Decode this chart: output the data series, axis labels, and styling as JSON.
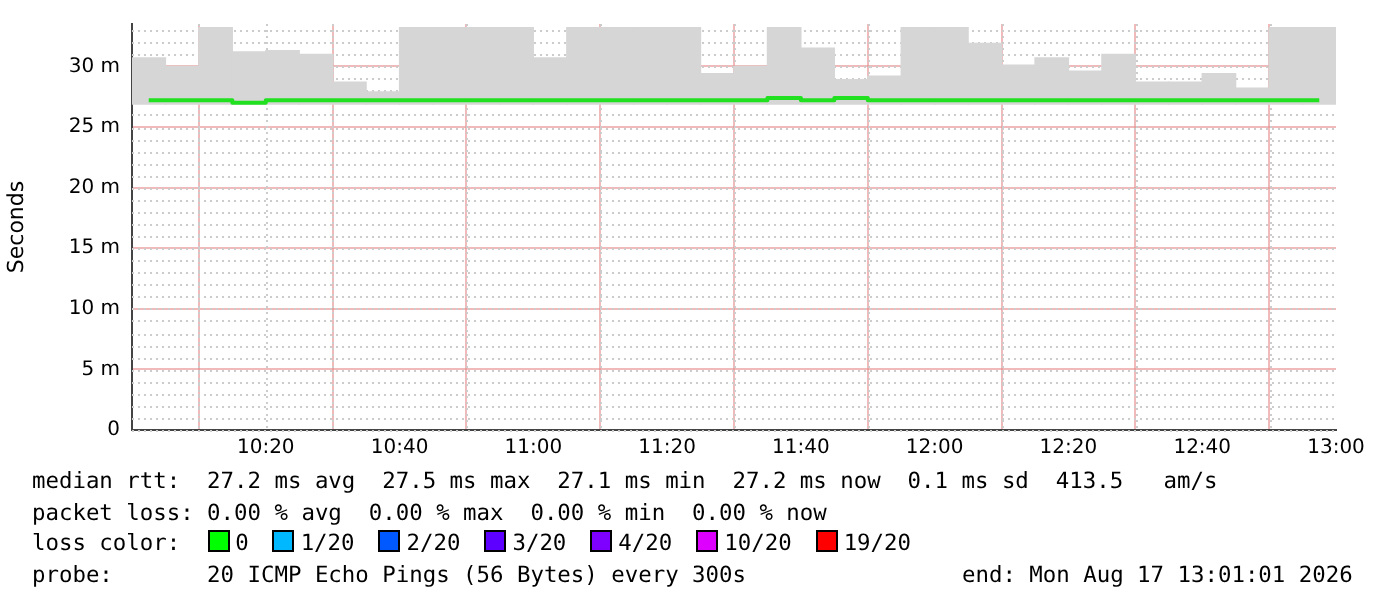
{
  "chart_data": {
    "type": "bar",
    "ylabel": "Seconds",
    "x": [
      10.0417,
      10.125,
      10.2083,
      10.2917,
      10.375,
      10.4583,
      10.5417,
      10.625,
      10.7083,
      10.7917,
      10.875,
      10.9583,
      11.0417,
      11.125,
      11.2083,
      11.2917,
      11.375,
      11.4583,
      11.5417,
      11.625,
      11.7083,
      11.7917,
      11.875,
      11.9583,
      12.0417,
      12.125,
      12.2083,
      12.2917,
      12.375,
      12.4583,
      12.5417,
      12.625,
      12.7083,
      12.7917,
      12.875,
      12.9583
    ],
    "xlim": [
      10.0,
      13.0
    ],
    "xticks": [
      {
        "value": 10.3333,
        "label": "10:20"
      },
      {
        "value": 10.6667,
        "label": "10:40"
      },
      {
        "value": 11,
        "label": "11:00"
      },
      {
        "value": 11.3333,
        "label": "11:20"
      },
      {
        "value": 11.6667,
        "label": "11:40"
      },
      {
        "value": 12,
        "label": "12:00"
      },
      {
        "value": 12.3333,
        "label": "12:20"
      },
      {
        "value": 12.6667,
        "label": "12:40"
      },
      {
        "value": 13,
        "label": "13:00"
      }
    ],
    "ylim": [
      0,
      33.5
    ],
    "yticks": [
      0,
      {
        "value": 5,
        "label": "5 m"
      },
      {
        "value": 10,
        "label": "10 m"
      },
      {
        "value": 15,
        "label": "15 m"
      },
      {
        "value": 20,
        "label": "20 m"
      },
      {
        "value": 25,
        "label": "25 m"
      },
      {
        "value": 30,
        "label": "30 m"
      }
    ],
    "grid": true,
    "series": [
      {
        "color": "#d6d6d6",
        "base": [
          26.9,
          26.9,
          26.9,
          26.9,
          26.9,
          26.9,
          26.9,
          26.9,
          26.9,
          26.9,
          26.9,
          26.9,
          26.9,
          26.9,
          26.9,
          26.9,
          26.9,
          26.9,
          26.9,
          26.9,
          26.9,
          26.9,
          26.9,
          26.9,
          26.9,
          26.9,
          26.9,
          26.9,
          26.9,
          26.9,
          26.9,
          26.9,
          26.9,
          26.9,
          26.9,
          26.9
        ],
        "values": [
          3.8,
          3.1,
          6.3,
          4.3,
          4.4,
          4.1,
          1.8,
          1.0,
          6.3,
          6.3,
          6.3,
          6.3,
          3.8,
          6.3,
          6.3,
          6.3,
          6.3,
          2.5,
          3.1,
          6.3,
          4.6,
          2.0,
          2.3,
          6.3,
          6.3,
          5.0,
          3.2,
          3.8,
          2.7,
          4.1,
          1.8,
          1.8,
          2.5,
          1.3,
          6.3,
          6.3
        ]
      },
      {
        "type": "step",
        "color": "#20e020",
        "values": [
          27.2,
          27.2,
          27.2,
          27.0,
          27.2,
          27.2,
          27.2,
          27.2,
          27.2,
          27.2,
          27.2,
          27.2,
          27.2,
          27.2,
          27.2,
          27.2,
          27.2,
          27.2,
          27.2,
          27.4,
          27.2,
          27.4,
          27.2,
          27.2,
          27.2,
          27.2,
          27.2,
          27.2,
          27.2,
          27.2,
          27.2,
          27.2,
          27.2,
          27.2,
          27.2,
          27.2
        ]
      }
    ],
    "annotations": [
      "median rtt:  27.2 ms avg  27.5 ms max  27.1 ms min  27.2 ms now  0.1 ms sd  413.5   am/s",
      "packet loss: 0.00 % avg  0.00 % max  0.00 % min  0.00 % now",
      "loss color:",
      "0",
      "1/20",
      "2/20",
      "3/20",
      "4/20",
      "10/20",
      "19/20",
      "probe:       20 ICMP Echo Pings (56 Bytes) every 300s",
      "end: Mon Aug 17 13:01:01 2026"
    ]
  }
}
